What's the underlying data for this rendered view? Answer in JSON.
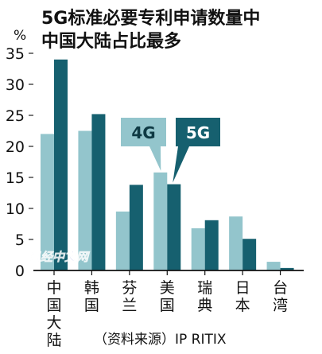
{
  "chart_data": {
    "type": "bar",
    "title": [
      "5G标准必要专利申请数量中",
      "中国大陆占比最多"
    ],
    "y_unit": "%",
    "ylim": [
      0,
      35
    ],
    "yticks": [
      0,
      5,
      10,
      15,
      20,
      25,
      30,
      35
    ],
    "grid": false,
    "categories": [
      "中国大陆",
      "韩国",
      "芬兰",
      "美国",
      "瑞典",
      "日本",
      "台湾"
    ],
    "series": [
      {
        "name": "4G",
        "color": "#93c5cc",
        "values": [
          22,
          22.5,
          9.5,
          15.8,
          6.8,
          8.7,
          1.4
        ]
      },
      {
        "name": "5G",
        "color": "#16606f",
        "values": [
          34,
          25.2,
          13.8,
          13.9,
          8.1,
          5.1,
          0.4
        ]
      }
    ],
    "source": "（资料来源）IP RITIX",
    "watermark": "日经中文网"
  }
}
